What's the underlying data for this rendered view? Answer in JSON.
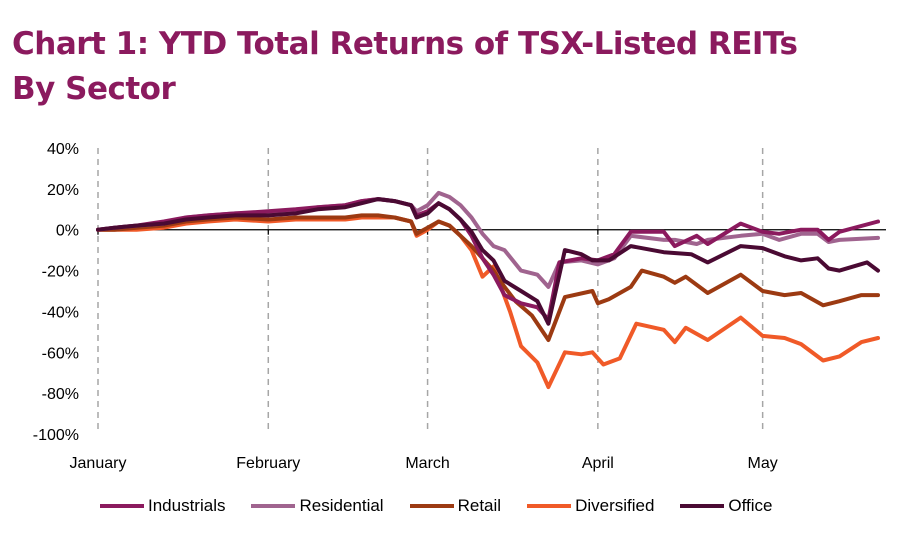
{
  "chart_data": {
    "type": "line",
    "title": "Chart 1: YTD Total Returns of TSX-Listed REITs",
    "subtitle": "By Sector",
    "xlabel": "",
    "ylabel": "",
    "x_unit": "days since Jan 1",
    "xlim": [
      0,
      142
    ],
    "ylim": [
      -100,
      40
    ],
    "y_ticks": [
      40,
      20,
      0,
      -20,
      -40,
      -60,
      -80,
      -100
    ],
    "y_tick_labels": [
      "40%",
      "20%",
      "0%",
      "-20%",
      "-40%",
      "-60%",
      "-80%",
      "-100%"
    ],
    "x_ticks": [
      0,
      31,
      60,
      91,
      121
    ],
    "x_tick_labels": [
      "January",
      "February",
      "March",
      "April",
      "May"
    ],
    "grid": "vertical dashed at month starts",
    "legend_position": "bottom",
    "series": [
      {
        "name": "Industrials",
        "color": "#8B1A5E",
        "x": [
          0,
          3,
          7,
          12,
          16,
          20,
          25,
          31,
          36,
          40,
          45,
          48,
          51,
          54,
          57,
          58,
          60,
          62,
          64,
          66,
          68,
          70,
          72,
          74,
          77,
          80,
          82,
          84,
          88,
          91,
          94,
          97,
          103,
          105,
          109,
          111,
          117,
          121,
          124,
          128,
          131,
          133,
          135,
          142
        ],
        "y": [
          0,
          1,
          2,
          4,
          6,
          7,
          8,
          9,
          10,
          11,
          12,
          14,
          15,
          14,
          12,
          7,
          9,
          13,
          10,
          5,
          -3,
          -14,
          -22,
          -32,
          -36,
          -38,
          -44,
          -16,
          -14,
          -15,
          -12,
          -1,
          -1,
          -8,
          -3,
          -7,
          3,
          -1,
          -2,
          0,
          0,
          -5,
          -1,
          4
        ]
      },
      {
        "name": "Residential",
        "color": "#A0648F",
        "x": [
          0,
          3,
          7,
          12,
          16,
          20,
          25,
          31,
          36,
          40,
          45,
          48,
          51,
          54,
          57,
          58,
          60,
          62,
          64,
          66,
          68,
          70,
          72,
          74,
          77,
          80,
          82,
          84,
          88,
          91,
          94,
          97,
          103,
          105,
          109,
          111,
          117,
          121,
          124,
          128,
          131,
          133,
          135,
          142
        ],
        "y": [
          0,
          1,
          2,
          3,
          6,
          7,
          8,
          8,
          9,
          11,
          12,
          14,
          15,
          14,
          12,
          9,
          12,
          18,
          16,
          12,
          6,
          -2,
          -8,
          -10,
          -20,
          -22,
          -28,
          -16,
          -15,
          -17,
          -14,
          -3,
          -5,
          -5,
          -7,
          -5,
          -3,
          -2,
          -5,
          -2,
          -2,
          -6,
          -5,
          -4
        ]
      },
      {
        "name": "Retail",
        "color": "#9C3A12",
        "x": [
          0,
          3,
          7,
          12,
          16,
          20,
          25,
          31,
          36,
          40,
          45,
          48,
          51,
          54,
          57,
          58,
          60,
          62,
          64,
          66,
          68,
          70,
          72,
          74,
          76,
          79,
          82,
          85,
          90,
          91,
          93,
          97,
          99,
          103,
          105,
          107,
          111,
          117,
          121,
          125,
          128,
          132,
          135,
          139,
          142
        ],
        "y": [
          0,
          0,
          1,
          2,
          4,
          5,
          6,
          5,
          6,
          6,
          6,
          7,
          7,
          6,
          4,
          -2,
          1,
          4,
          2,
          -3,
          -8,
          -14,
          -20,
          -28,
          -35,
          -42,
          -54,
          -33,
          -30,
          -36,
          -34,
          -28,
          -20,
          -23,
          -26,
          -23,
          -31,
          -22,
          -30,
          -32,
          -31,
          -37,
          -35,
          -32,
          -32
        ]
      },
      {
        "name": "Diversified",
        "color": "#F05A28",
        "x": [
          0,
          3,
          7,
          12,
          16,
          20,
          25,
          31,
          36,
          40,
          45,
          48,
          51,
          54,
          57,
          58,
          60,
          62,
          64,
          66,
          68,
          70,
          72,
          75,
          77,
          80,
          82,
          85,
          88,
          90,
          92,
          95,
          98,
          103,
          105,
          107,
          111,
          117,
          121,
          125,
          128,
          132,
          135,
          139,
          142
        ],
        "y": [
          0,
          0,
          0,
          1,
          3,
          4,
          5,
          4,
          5,
          5,
          5,
          6,
          6,
          6,
          4,
          -3,
          0,
          4,
          2,
          -3,
          -10,
          -23,
          -18,
          -40,
          -57,
          -65,
          -77,
          -60,
          -61,
          -60,
          -66,
          -63,
          -46,
          -49,
          -55,
          -48,
          -54,
          -43,
          -52,
          -53,
          -56,
          -64,
          -62,
          -55,
          -53
        ]
      },
      {
        "name": "Office",
        "color": "#4A0A33",
        "x": [
          0,
          3,
          7,
          12,
          16,
          20,
          25,
          31,
          36,
          40,
          45,
          48,
          51,
          54,
          57,
          58,
          60,
          62,
          64,
          66,
          68,
          70,
          72,
          74,
          77,
          80,
          82,
          85,
          88,
          90,
          93,
          97,
          103,
          108,
          111,
          117,
          121,
          125,
          128,
          131,
          133,
          135,
          140,
          142
        ],
        "y": [
          0,
          1,
          2,
          3,
          5,
          6,
          7,
          7,
          8,
          10,
          11,
          13,
          15,
          14,
          12,
          6,
          8,
          13,
          10,
          5,
          -1,
          -10,
          -15,
          -25,
          -30,
          -35,
          -46,
          -10,
          -12,
          -15,
          -15,
          -8,
          -11,
          -12,
          -16,
          -8,
          -9,
          -13,
          -15,
          -14,
          -19,
          -20,
          -16,
          -20
        ]
      }
    ]
  }
}
